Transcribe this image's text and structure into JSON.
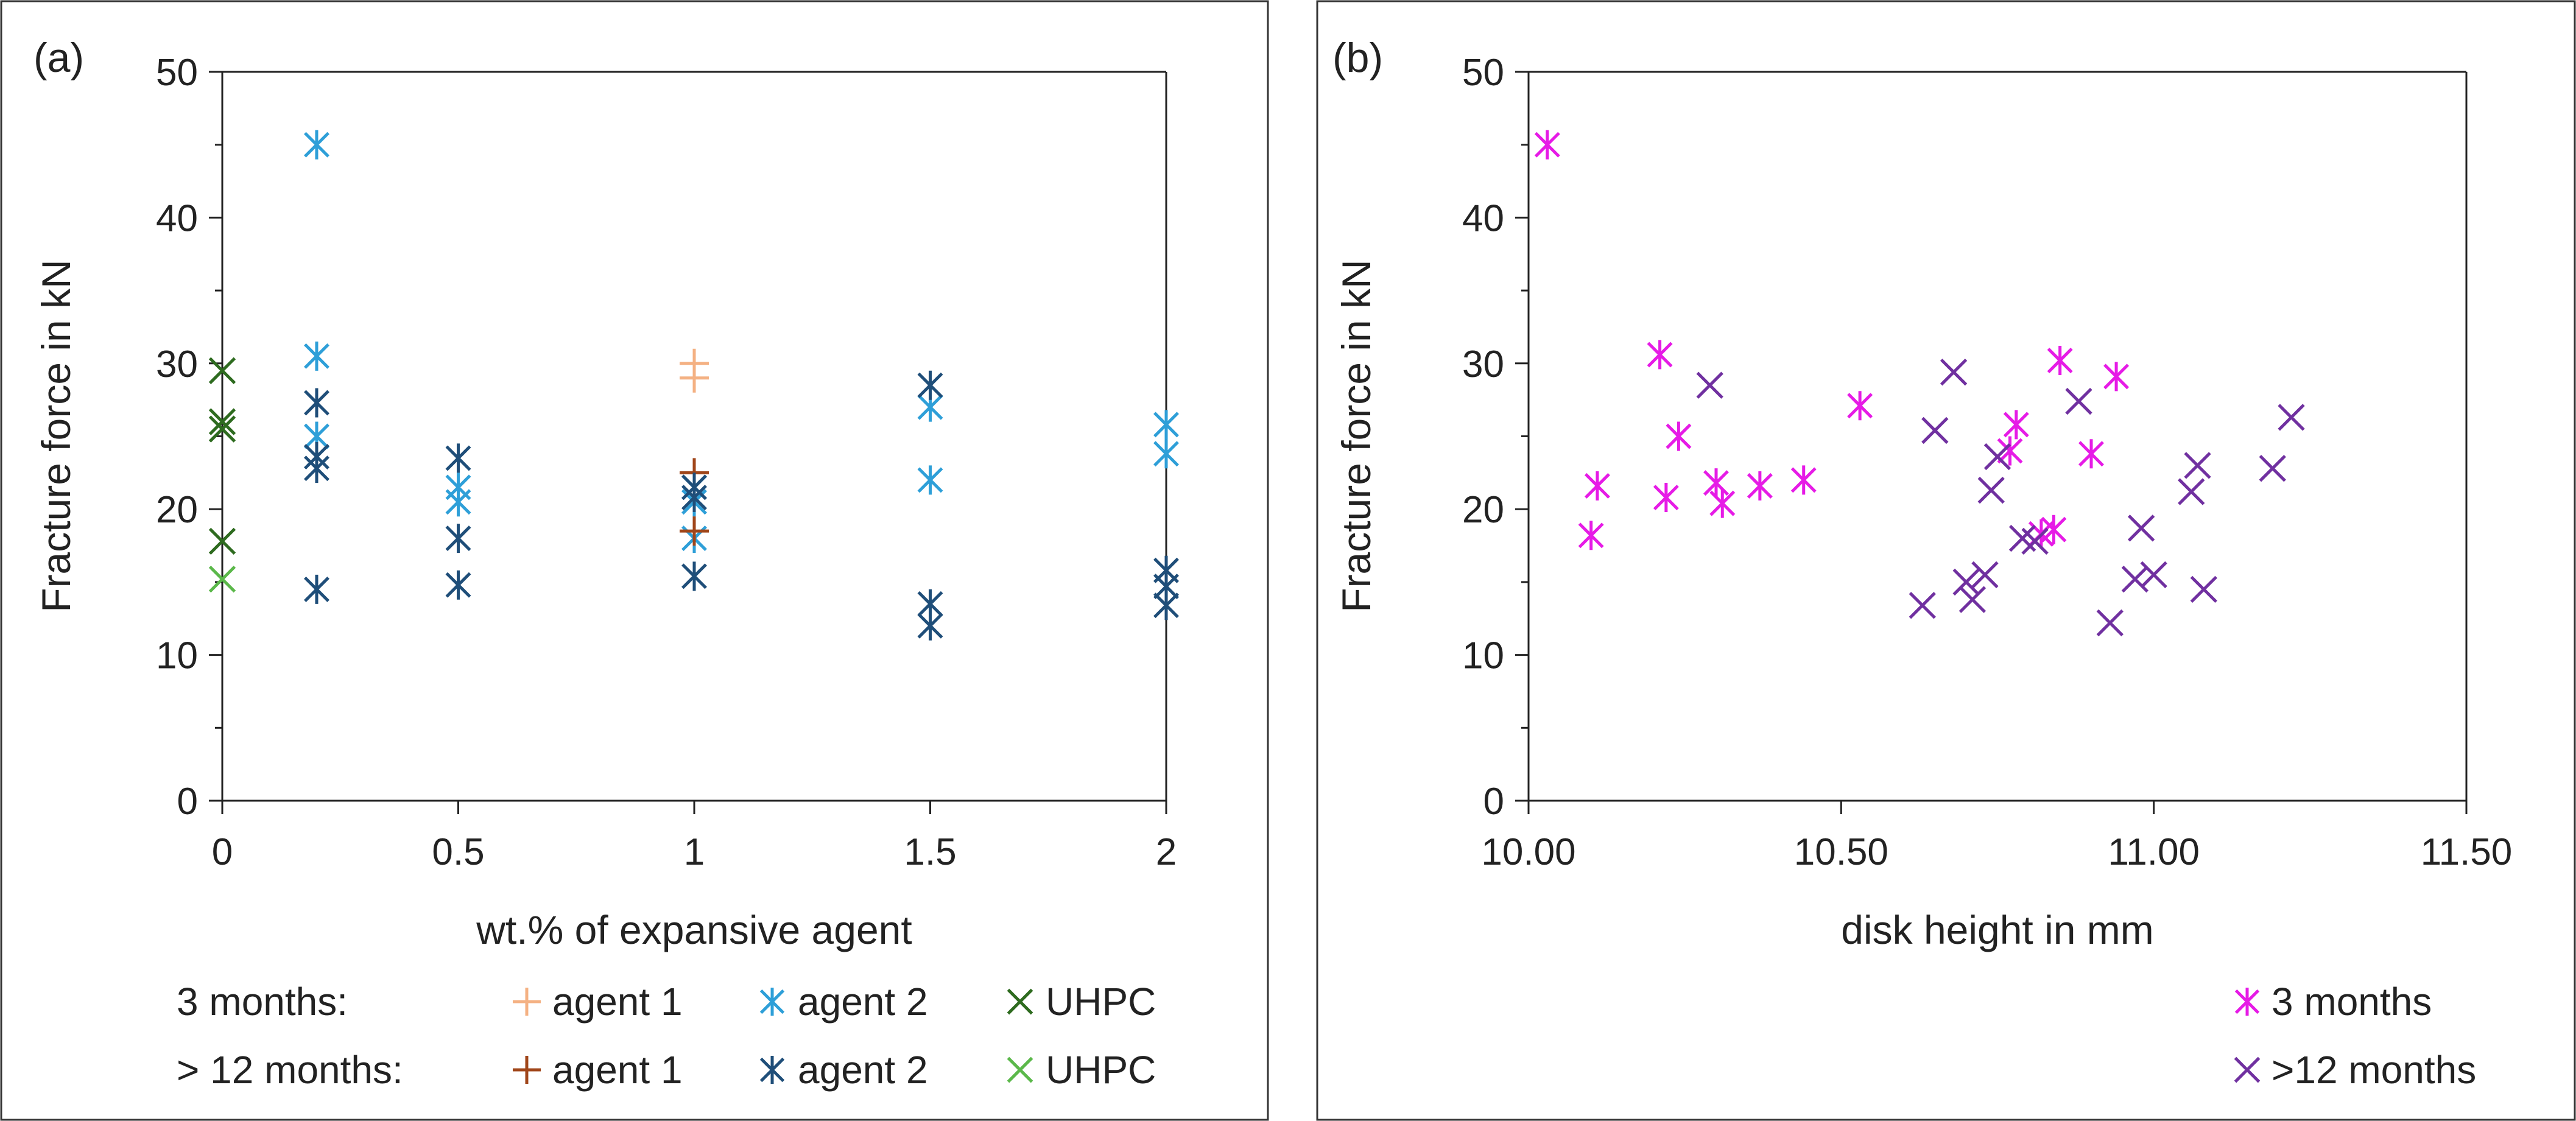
{
  "chart_data": [
    {
      "panel_label": "(a)",
      "type": "scatter",
      "xlabel": "wt.% of expansive agent",
      "ylabel": "Fracture force in kN",
      "xlim": [
        0,
        2
      ],
      "ylim": [
        0,
        50
      ],
      "x_ticks": [
        0,
        0.5,
        1,
        1.5,
        2
      ],
      "x_tick_labels": [
        "0",
        "0.5",
        "1",
        "1.5",
        "2"
      ],
      "y_ticks": [
        0,
        10,
        20,
        30,
        40,
        50
      ],
      "y_tick_labels": [
        "0",
        "10",
        "20",
        "30",
        "40",
        "50"
      ],
      "legend": {
        "group_labels": [
          "3 months:",
          "> 12 months:"
        ],
        "entries": [
          {
            "group": 0,
            "label": "agent 1",
            "series": 0
          },
          {
            "group": 0,
            "label": "agent 2",
            "series": 1
          },
          {
            "group": 0,
            "label": "UHPC",
            "series": 2
          },
          {
            "group": 1,
            "label": "agent 1",
            "series": 3
          },
          {
            "group": 1,
            "label": "agent 2",
            "series": 4
          },
          {
            "group": 1,
            "label": "UHPC",
            "series": 5
          }
        ]
      },
      "series": [
        {
          "name": "3 months: agent 1",
          "marker": "plus",
          "color": "#F4B183",
          "points": [
            [
              1,
              30.0
            ],
            [
              1,
              29.0
            ]
          ]
        },
        {
          "name": "3 months: agent 2",
          "marker": "asterisk",
          "color": "#2E9FD8",
          "points": [
            [
              0.2,
              45.0
            ],
            [
              0.2,
              30.5
            ],
            [
              0.2,
              25.0
            ],
            [
              0.5,
              21.5
            ],
            [
              0.5,
              20.5
            ],
            [
              1,
              21.5
            ],
            [
              1,
              20.5
            ],
            [
              1,
              18.0
            ],
            [
              1.5,
              27.0
            ],
            [
              1.5,
              22.0
            ],
            [
              2,
              25.8
            ],
            [
              2,
              23.8
            ]
          ]
        },
        {
          "name": "3 months: UHPC",
          "marker": "x",
          "color": "#2E6B1F",
          "points": [
            [
              0,
              29.5
            ],
            [
              0,
              26.0
            ],
            [
              0,
              25.5
            ],
            [
              0,
              17.8
            ]
          ]
        },
        {
          "name": "> 12 months: agent 1",
          "marker": "plus",
          "color": "#A0461A",
          "points": [
            [
              1,
              22.5
            ],
            [
              1,
              18.5
            ]
          ]
        },
        {
          "name": "> 12 months: agent 2",
          "marker": "asterisk",
          "color": "#1F4E79",
          "points": [
            [
              0.2,
              27.3
            ],
            [
              0.2,
              23.6
            ],
            [
              0.2,
              22.8
            ],
            [
              0.2,
              14.5
            ],
            [
              0.5,
              23.5
            ],
            [
              0.5,
              18.0
            ],
            [
              0.5,
              14.8
            ],
            [
              1,
              21.5
            ],
            [
              1,
              20.8
            ],
            [
              1,
              15.4
            ],
            [
              1.5,
              28.5
            ],
            [
              1.5,
              13.5
            ],
            [
              1.5,
              12.0
            ],
            [
              2,
              15.8
            ],
            [
              2,
              14.7
            ],
            [
              2,
              13.4
            ]
          ]
        },
        {
          "name": "> 12 months: UHPC",
          "marker": "x",
          "color": "#5BB84A",
          "points": [
            [
              0,
              15.2
            ]
          ]
        }
      ]
    },
    {
      "panel_label": "(b)",
      "type": "scatter",
      "xlabel": "disk height in mm",
      "ylabel": "Fracture force in kN",
      "xlim": [
        10.0,
        11.5
      ],
      "ylim": [
        0,
        50
      ],
      "x_ticks": [
        10.0,
        10.5,
        11.0,
        11.5
      ],
      "x_tick_labels": [
        "10.00",
        "10.50",
        "11.00",
        "11.50"
      ],
      "y_ticks": [
        0,
        10,
        20,
        30,
        40,
        50
      ],
      "y_tick_labels": [
        "0",
        "10",
        "20",
        "30",
        "40",
        "50"
      ],
      "legend": {
        "entries": [
          {
            "label": "3 months",
            "series": 0
          },
          {
            "label": ">12 months",
            "series": 1
          }
        ]
      },
      "series": [
        {
          "name": "3 months",
          "marker": "asterisk",
          "color": "#E61BE6",
          "points": [
            [
              10.03,
              45.0
            ],
            [
              10.1,
              18.2
            ],
            [
              10.11,
              21.6
            ],
            [
              10.21,
              30.6
            ],
            [
              10.22,
              20.8
            ],
            [
              10.24,
              25.0
            ],
            [
              10.3,
              21.8
            ],
            [
              10.31,
              20.4
            ],
            [
              10.37,
              21.6
            ],
            [
              10.44,
              22.0
            ],
            [
              10.53,
              27.1
            ],
            [
              10.77,
              24.0
            ],
            [
              10.78,
              25.8
            ],
            [
              10.82,
              18.3
            ],
            [
              10.84,
              18.6
            ],
            [
              10.85,
              30.2
            ],
            [
              10.9,
              23.8
            ],
            [
              10.94,
              29.1
            ]
          ]
        },
        {
          "name": ">12 months",
          "marker": "x",
          "color": "#7030A0",
          "points": [
            [
              10.29,
              28.5
            ],
            [
              10.63,
              13.4
            ],
            [
              10.65,
              25.4
            ],
            [
              10.68,
              29.4
            ],
            [
              10.7,
              15.0
            ],
            [
              10.71,
              13.8
            ],
            [
              10.73,
              15.5
            ],
            [
              10.74,
              21.3
            ],
            [
              10.75,
              23.6
            ],
            [
              10.79,
              18.0
            ],
            [
              10.81,
              17.8
            ],
            [
              10.88,
              27.4
            ],
            [
              10.93,
              12.2
            ],
            [
              10.97,
              15.2
            ],
            [
              10.98,
              18.7
            ],
            [
              11.0,
              15.5
            ],
            [
              11.06,
              21.2
            ],
            [
              11.07,
              23.0
            ],
            [
              11.08,
              14.5
            ],
            [
              11.19,
              22.8
            ],
            [
              11.22,
              26.3
            ]
          ]
        }
      ]
    }
  ]
}
